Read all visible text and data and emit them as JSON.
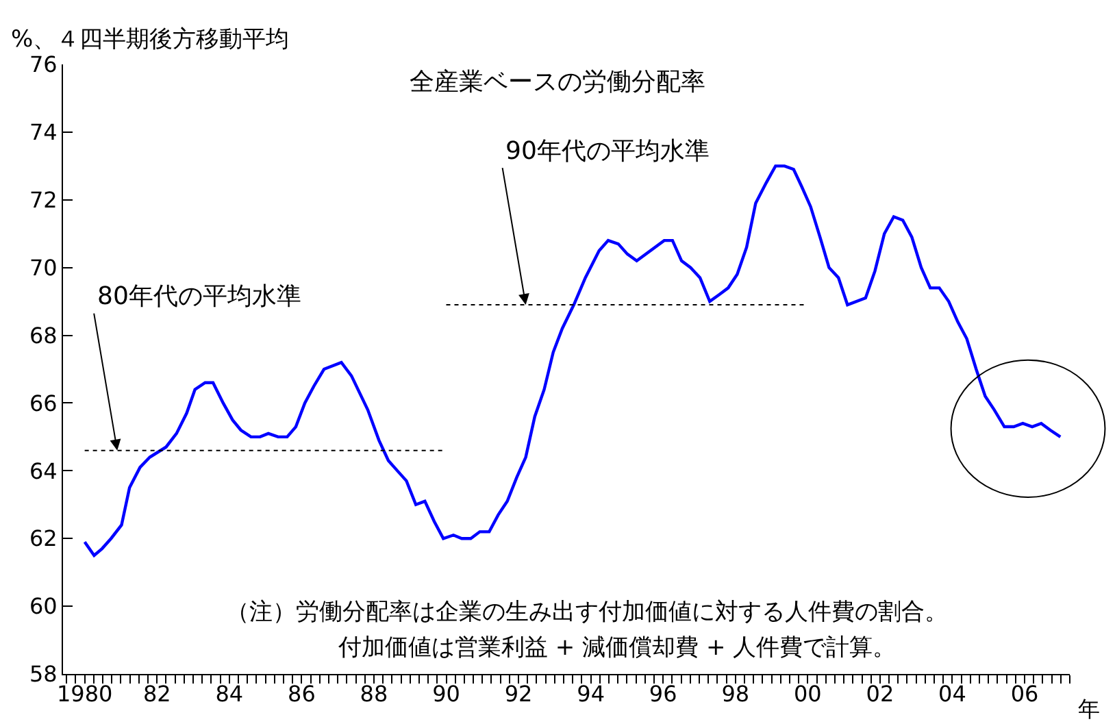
{
  "chart_data": {
    "type": "line",
    "title": "全産業ベースの労働分配率",
    "ylabel": "%、４四半期後方移動平均",
    "xlabel": "年",
    "xlim": [
      1979.4,
      2007.25
    ],
    "ylim": [
      58,
      76
    ],
    "yticks": [
      58,
      60,
      62,
      64,
      66,
      68,
      70,
      72,
      74,
      76
    ],
    "xticks": [
      1980,
      {
        "value": 1982,
        "label": "82"
      },
      {
        "value": 1984,
        "label": "84"
      },
      {
        "value": 1986,
        "label": "86"
      },
      {
        "value": 1988,
        "label": "88"
      },
      {
        "value": 1990,
        "label": "90"
      },
      {
        "value": 1992,
        "label": "92"
      },
      {
        "value": 1994,
        "label": "94"
      },
      {
        "value": 1996,
        "label": "96"
      },
      {
        "value": 1998,
        "label": "98"
      },
      {
        "value": 2000,
        "label": "00"
      },
      {
        "value": 2002,
        "label": "02"
      },
      {
        "value": 2004,
        "label": "04"
      },
      {
        "value": 2006,
        "label": "06"
      }
    ],
    "marker": "none",
    "series": [
      {
        "color": "#0000ff",
        "line_style": "solid",
        "x": [
          1980.0,
          1980.26,
          1980.48,
          1980.73,
          1981.02,
          1981.24,
          1981.53,
          1981.8,
          1982.25,
          1982.54,
          1982.82,
          1983.05,
          1983.33,
          1983.55,
          1983.83,
          1984.09,
          1984.32,
          1984.6,
          1984.85,
          1985.08,
          1985.35,
          1985.6,
          1985.84,
          1986.09,
          1986.34,
          1986.62,
          1987.1,
          1987.38,
          1987.83,
          1988.14,
          1988.4,
          1988.65,
          1988.9,
          1989.16,
          1989.41,
          1989.67,
          1989.92,
          1990.2,
          1990.43,
          1990.68,
          1990.93,
          1991.19,
          1991.44,
          1991.69,
          1991.95,
          1992.2,
          1992.45,
          1992.71,
          1992.96,
          1993.21,
          1993.53,
          1993.85,
          1994.23,
          1994.48,
          1994.76,
          1995.01,
          1995.27,
          1996.03,
          1996.26,
          1996.51,
          1996.76,
          1997.02,
          1997.29,
          1997.55,
          1997.8,
          1998.05,
          1998.31,
          1998.56,
          1998.85,
          1999.11,
          1999.36,
          1999.61,
          1999.83,
          2000.08,
          2000.34,
          2000.59,
          2000.85,
          2001.1,
          2001.6,
          2001.86,
          2002.12,
          2002.38,
          2002.63,
          2002.88,
          2003.14,
          2003.39,
          2003.64,
          2003.9,
          2004.15,
          2004.4,
          2004.66,
          2004.91,
          2005.16,
          2005.44,
          2005.7,
          2005.95,
          2006.21,
          2006.46,
          2006.71,
          2006.99
        ],
        "values": [
          61.9,
          61.5,
          61.7,
          62.0,
          62.4,
          63.5,
          64.1,
          64.4,
          64.7,
          65.1,
          65.7,
          66.4,
          66.6,
          66.6,
          66.0,
          65.5,
          65.2,
          65.0,
          65.0,
          65.1,
          65.0,
          65.0,
          65.3,
          66.0,
          66.5,
          67.0,
          67.2,
          66.8,
          65.8,
          64.9,
          64.3,
          64.0,
          63.7,
          63.0,
          63.1,
          62.5,
          62.0,
          62.1,
          62.0,
          62.0,
          62.2,
          62.2,
          62.7,
          63.1,
          63.8,
          64.4,
          65.6,
          66.4,
          67.5,
          68.2,
          68.9,
          69.7,
          70.5,
          70.8,
          70.7,
          70.4,
          70.2,
          70.8,
          70.8,
          70.2,
          70.0,
          69.7,
          69.0,
          69.2,
          69.4,
          69.8,
          70.6,
          71.9,
          72.5,
          73.0,
          73.0,
          72.9,
          72.4,
          71.8,
          70.9,
          70.0,
          69.7,
          68.9,
          69.1,
          69.9,
          71.0,
          71.5,
          71.4,
          70.9,
          70.0,
          69.4,
          69.4,
          69.0,
          68.4,
          67.9,
          67.0,
          66.2,
          65.8,
          65.3,
          65.3,
          65.4,
          65.3,
          65.4,
          65.2,
          65.0
        ]
      },
      {
        "color": "#000000",
        "line_style": "dotted",
        "x": [
          1980.0,
          1990.0
        ],
        "values": [
          64.6,
          64.6
        ]
      },
      {
        "color": "#000000",
        "line_style": "dotted",
        "x": [
          1990.0,
          2000.0
        ],
        "values": [
          68.9,
          68.9
        ]
      }
    ],
    "annotations": [
      {
        "text": "80年代の平均水準",
        "x": 1980.9,
        "y": 64.6
      },
      {
        "text": "90年代の平均水準",
        "x": 1992.2,
        "y": 68.9
      },
      "（注）労働分配率は企業の生み出す付加価値に対する人件費の割合。",
      "付加価値は営業利益 + 減価償却費 + 人件費で計算。"
    ]
  }
}
